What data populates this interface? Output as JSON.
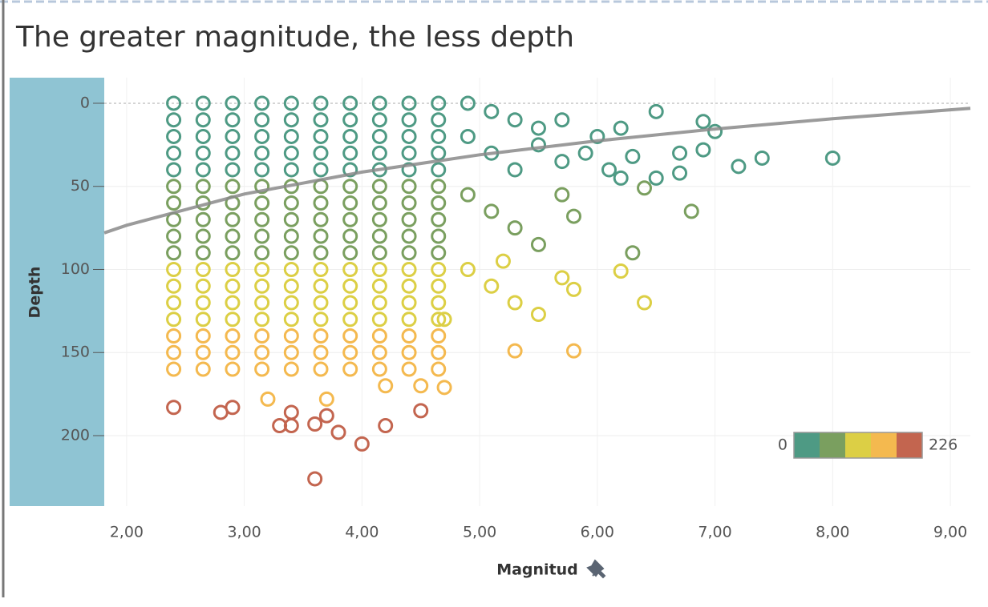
{
  "chart_data": {
    "type": "scatter",
    "title": "The greater magnitude, the less depth",
    "x_label": "Magnitud",
    "y_label": "Depth",
    "xlim": [
      1.81,
      9.17
    ],
    "ylim": [
      -15.4,
      242.4
    ],
    "y_reversed": true,
    "grid": true,
    "xticks": [
      {
        "value": 2,
        "label": "2,00"
      },
      {
        "value": 3,
        "label": "3,00"
      },
      {
        "value": 4,
        "label": "4,00"
      },
      {
        "value": 5,
        "label": "5,00"
      },
      {
        "value": 6,
        "label": "6,00"
      },
      {
        "value": 7,
        "label": "7,00"
      },
      {
        "value": 8,
        "label": "8,00"
      },
      {
        "value": 9,
        "label": "9,00"
      }
    ],
    "yticks": [
      0,
      50,
      100,
      150,
      200
    ],
    "color_scale": {
      "min": 0,
      "max": 226,
      "colors": [
        "#4e9a84",
        "#7a9f5f",
        "#dccf45",
        "#f4b94f",
        "#c3654f"
      ]
    },
    "legend_position": "lower right",
    "trend_line": {
      "color": "#8a8a8a",
      "x": [
        1.81,
        2,
        3,
        4,
        5,
        6,
        7,
        8,
        9,
        9.17
      ],
      "y": [
        78.0,
        73.4,
        54.6,
        41.4,
        31.0,
        22.6,
        15.5,
        9.3,
        3.9,
        3.0
      ]
    },
    "x": [
      2.4,
      2.65,
      2.9,
      3.15,
      3.4,
      3.65,
      3.9,
      4.15,
      4.4,
      4.65,
      2.4,
      2.65,
      2.9,
      3.15,
      3.4,
      3.65,
      3.9,
      4.15,
      4.4,
      4.65,
      2.4,
      2.65,
      2.9,
      3.15,
      3.4,
      3.65,
      3.9,
      4.15,
      4.4,
      4.65,
      2.4,
      2.65,
      2.9,
      3.15,
      3.4,
      3.65,
      3.9,
      4.15,
      4.4,
      4.65,
      2.4,
      2.65,
      2.9,
      3.15,
      3.4,
      3.65,
      3.9,
      4.15,
      4.4,
      4.65,
      2.4,
      2.65,
      2.9,
      3.15,
      3.4,
      3.65,
      3.9,
      4.15,
      4.4,
      4.65,
      2.4,
      2.65,
      2.9,
      3.15,
      3.4,
      3.65,
      3.9,
      4.15,
      4.4,
      4.65,
      2.4,
      2.65,
      2.9,
      3.15,
      3.4,
      3.65,
      3.9,
      4.15,
      4.4,
      4.65,
      2.4,
      2.65,
      2.9,
      3.15,
      3.4,
      3.65,
      3.9,
      4.15,
      4.4,
      4.65,
      2.4,
      2.65,
      2.9,
      3.15,
      3.4,
      3.65,
      3.9,
      4.15,
      4.4,
      4.65,
      2.4,
      2.65,
      2.9,
      3.15,
      3.4,
      3.65,
      3.9,
      4.15,
      4.4,
      4.65,
      2.4,
      2.65,
      2.9,
      3.15,
      3.4,
      3.65,
      3.9,
      4.15,
      4.4,
      4.65,
      2.4,
      2.65,
      2.9,
      3.15,
      3.4,
      3.65,
      3.9,
      4.15,
      4.4,
      4.65,
      2.4,
      2.65,
      2.9,
      3.15,
      3.4,
      3.65,
      3.9,
      4.15,
      4.4,
      4.65,
      2.4,
      2.65,
      2.9,
      3.15,
      3.4,
      3.65,
      3.9,
      4.15,
      4.4,
      4.65,
      2.4,
      2.65,
      2.9,
      3.15,
      3.4,
      3.65,
      3.9,
      4.15,
      4.4,
      4.65,
      2.4,
      2.65,
      2.9,
      3.15,
      3.4,
      3.65,
      3.9,
      4.15,
      4.4,
      4.65,
      4.9,
      5.1,
      5.3,
      5.5,
      5.7,
      4.9,
      5.1,
      5.3,
      5.5,
      5.7,
      5.9,
      6.0,
      6.2,
      6.5,
      6.9,
      7.0,
      6.7,
      6.9,
      7.2,
      7.4,
      8.0,
      6.3,
      6.1,
      6.5,
      6.7,
      4.9,
      5.1,
      5.3,
      5.5,
      5.7,
      5.8,
      6.2,
      6.4,
      6.8,
      6.3,
      4.9,
      5.1,
      5.3,
      5.5,
      5.2,
      5.7,
      5.8,
      6.2,
      6.4,
      4.7,
      4.5,
      4.2,
      3.7,
      3.2,
      4.7,
      5.3,
      5.8,
      2.4,
      2.8,
      2.9,
      3.3,
      3.4,
      3.4,
      3.6,
      3.7,
      3.8,
      4.0,
      4.2,
      4.5,
      3.6
    ],
    "y": [
      0,
      0,
      0,
      0,
      0,
      0,
      0,
      0,
      0,
      0,
      10,
      10,
      10,
      10,
      10,
      10,
      10,
      10,
      10,
      10,
      20,
      20,
      20,
      20,
      20,
      20,
      20,
      20,
      20,
      20,
      30,
      30,
      30,
      30,
      30,
      30,
      30,
      30,
      30,
      30,
      40,
      40,
      40,
      40,
      40,
      40,
      40,
      40,
      40,
      40,
      50,
      50,
      50,
      50,
      50,
      50,
      50,
      50,
      50,
      50,
      60,
      60,
      60,
      60,
      60,
      60,
      60,
      60,
      60,
      60,
      70,
      70,
      70,
      70,
      70,
      70,
      70,
      70,
      70,
      70,
      80,
      80,
      80,
      80,
      80,
      80,
      80,
      80,
      80,
      80,
      90,
      90,
      90,
      90,
      90,
      90,
      90,
      90,
      90,
      90,
      100,
      100,
      100,
      100,
      100,
      100,
      100,
      100,
      100,
      100,
      110,
      110,
      110,
      110,
      110,
      110,
      110,
      110,
      110,
      110,
      120,
      120,
      120,
      120,
      120,
      120,
      120,
      120,
      120,
      120,
      130,
      130,
      130,
      130,
      130,
      130,
      130,
      130,
      130,
      130,
      140,
      140,
      140,
      140,
      140,
      140,
      140,
      140,
      140,
      140,
      150,
      150,
      150,
      150,
      150,
      150,
      150,
      150,
      150,
      150,
      160,
      160,
      160,
      160,
      160,
      160,
      160,
      160,
      160,
      160,
      0,
      5,
      10,
      15,
      10,
      20,
      30,
      40,
      25,
      35,
      30,
      20,
      15,
      5,
      11,
      17,
      30,
      28,
      38,
      33,
      33,
      32,
      40,
      45,
      42,
      55,
      65,
      75,
      85,
      55,
      68,
      45,
      51,
      65,
      90,
      100,
      110,
      120,
      127,
      95,
      105,
      112,
      101,
      120,
      130,
      170,
      170,
      178,
      178,
      171,
      149,
      149,
      183,
      186,
      183,
      194,
      186,
      194,
      193,
      188,
      198,
      205,
      194,
      185,
      226
    ]
  }
}
